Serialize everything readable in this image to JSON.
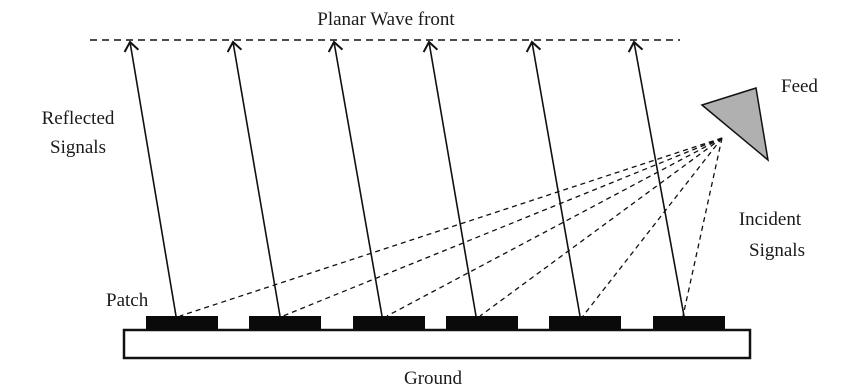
{
  "labels": {
    "wavefront": "Planar Wave front",
    "feed": "Feed",
    "reflected_line1": "Reflected",
    "reflected_line2": "Signals",
    "incident_line1": "Incident",
    "incident_line2": "Signals",
    "patch": "Patch",
    "ground": "Ground"
  },
  "elements": {
    "patch_count": 6,
    "reflected_ray_count": 6,
    "incident_ray_count": 6
  },
  "colors": {
    "stroke": "#111111",
    "patch_fill": "#0a0a0a",
    "ground_fill": "#ffffff",
    "feed_fill": "#b0b0b0"
  }
}
